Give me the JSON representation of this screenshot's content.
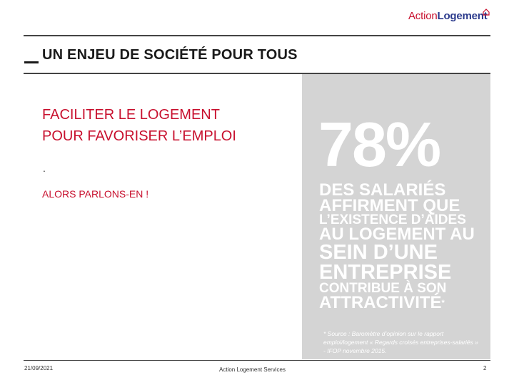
{
  "brand": {
    "part1": "Action",
    "part2": "Logement"
  },
  "slide": {
    "title": "UN ENJEU DE SOCIÉTÉ POUR TOUS",
    "headline": [
      "FACILITER LE LOGEMENT",
      "POUR FAVORISER L’EMPLOI"
    ],
    "dot": ".",
    "cta": "ALORS PARLONS-EN !"
  },
  "stat": {
    "value": "78%",
    "lines": [
      "DES SALARIÉS",
      "AFFIRMENT QUE",
      "L’EXISTENCE D’AIDES",
      "AU LOGEMENT AU",
      "SEIN D’UNE",
      "ENTREPRISE",
      "CONTRIBUE À SON",
      "ATTRACTIVITÉ"
    ],
    "asterisk": "*",
    "source": "* Source : Baromètre d’opinion sur le rapport emploi/logement « Regards croisés entreprises-salariés » - IFOP novembre 2015."
  },
  "footer": {
    "date": "21/09/2021",
    "center": "Action Logement Services",
    "page": "2"
  },
  "colors": {
    "accent": "#c8102e",
    "brand_blue": "#2b3a8c",
    "panel": "#d4d4d4"
  }
}
